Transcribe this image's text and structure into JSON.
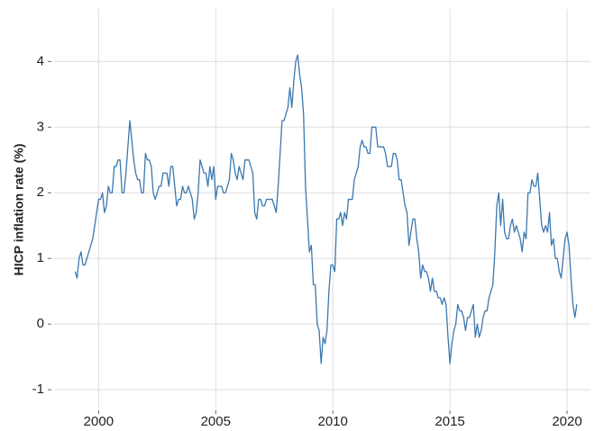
{
  "chart_data": {
    "type": "line",
    "y_label": "HICP inflation rate (%)",
    "x": [
      1999.0,
      1999.083,
      1999.167,
      1999.25,
      1999.333,
      1999.417,
      1999.5,
      1999.583,
      1999.667,
      1999.75,
      1999.833,
      1999.917,
      2000.0,
      2000.083,
      2000.167,
      2000.25,
      2000.333,
      2000.417,
      2000.5,
      2000.583,
      2000.667,
      2000.75,
      2000.833,
      2000.917,
      2001.0,
      2001.083,
      2001.167,
      2001.25,
      2001.333,
      2001.417,
      2001.5,
      2001.583,
      2001.667,
      2001.75,
      2001.833,
      2001.917,
      2002.0,
      2002.083,
      2002.167,
      2002.25,
      2002.333,
      2002.417,
      2002.5,
      2002.583,
      2002.667,
      2002.75,
      2002.833,
      2002.917,
      2003.0,
      2003.083,
      2003.167,
      2003.25,
      2003.333,
      2003.417,
      2003.5,
      2003.583,
      2003.667,
      2003.75,
      2003.833,
      2003.917,
      2004.0,
      2004.083,
      2004.167,
      2004.25,
      2004.333,
      2004.417,
      2004.5,
      2004.583,
      2004.667,
      2004.75,
      2004.833,
      2004.917,
      2005.0,
      2005.083,
      2005.167,
      2005.25,
      2005.333,
      2005.417,
      2005.5,
      2005.583,
      2005.667,
      2005.75,
      2005.833,
      2005.917,
      2006.0,
      2006.083,
      2006.167,
      2006.25,
      2006.333,
      2006.417,
      2006.5,
      2006.583,
      2006.667,
      2006.75,
      2006.833,
      2006.917,
      2007.0,
      2007.083,
      2007.167,
      2007.25,
      2007.333,
      2007.417,
      2007.5,
      2007.583,
      2007.667,
      2007.75,
      2007.833,
      2007.917,
      2008.0,
      2008.083,
      2008.167,
      2008.25,
      2008.333,
      2008.417,
      2008.5,
      2008.583,
      2008.667,
      2008.75,
      2008.833,
      2008.917,
      2009.0,
      2009.083,
      2009.167,
      2009.25,
      2009.333,
      2009.417,
      2009.5,
      2009.583,
      2009.667,
      2009.75,
      2009.833,
      2009.917,
      2010.0,
      2010.083,
      2010.167,
      2010.25,
      2010.333,
      2010.417,
      2010.5,
      2010.583,
      2010.667,
      2010.75,
      2010.833,
      2010.917,
      2011.0,
      2011.083,
      2011.167,
      2011.25,
      2011.333,
      2011.417,
      2011.5,
      2011.583,
      2011.667,
      2011.75,
      2011.833,
      2011.917,
      2012.0,
      2012.083,
      2012.167,
      2012.25,
      2012.333,
      2012.417,
      2012.5,
      2012.583,
      2012.667,
      2012.75,
      2012.833,
      2012.917,
      2013.0,
      2013.083,
      2013.167,
      2013.25,
      2013.333,
      2013.417,
      2013.5,
      2013.583,
      2013.667,
      2013.75,
      2013.833,
      2013.917,
      2014.0,
      2014.083,
      2014.167,
      2014.25,
      2014.333,
      2014.417,
      2014.5,
      2014.583,
      2014.667,
      2014.75,
      2014.833,
      2014.917,
      2015.0,
      2015.083,
      2015.167,
      2015.25,
      2015.333,
      2015.417,
      2015.5,
      2015.583,
      2015.667,
      2015.75,
      2015.833,
      2015.917,
      2016.0,
      2016.083,
      2016.167,
      2016.25,
      2016.333,
      2016.417,
      2016.5,
      2016.583,
      2016.667,
      2016.75,
      2016.833,
      2016.917,
      2017.0,
      2017.083,
      2017.167,
      2017.25,
      2017.333,
      2017.417,
      2017.5,
      2017.583,
      2017.667,
      2017.75,
      2017.833,
      2017.917,
      2018.0,
      2018.083,
      2018.167,
      2018.25,
      2018.333,
      2018.417,
      2018.5,
      2018.583,
      2018.667,
      2018.75,
      2018.833,
      2018.917,
      2019.0,
      2019.083,
      2019.167,
      2019.25,
      2019.333,
      2019.417,
      2019.5,
      2019.583,
      2019.667,
      2019.75,
      2019.833,
      2019.917,
      2020.0,
      2020.083,
      2020.167,
      2020.25,
      2020.333,
      2020.417
    ],
    "series": [
      {
        "color": "#3b78b0",
        "values": [
          0.8,
          0.7,
          1.0,
          1.1,
          0.9,
          0.9,
          1.0,
          1.1,
          1.2,
          1.3,
          1.5,
          1.7,
          1.9,
          1.9,
          2.0,
          1.7,
          1.8,
          2.1,
          2.0,
          2.0,
          2.4,
          2.4,
          2.5,
          2.5,
          2.0,
          2.0,
          2.3,
          2.7,
          3.1,
          2.8,
          2.5,
          2.3,
          2.2,
          2.2,
          2.0,
          2.0,
          2.6,
          2.5,
          2.5,
          2.4,
          2.0,
          1.9,
          2.0,
          2.1,
          2.1,
          2.3,
          2.3,
          2.3,
          2.1,
          2.4,
          2.4,
          2.1,
          1.8,
          1.9,
          1.9,
          2.1,
          2.0,
          2.0,
          2.1,
          2.0,
          1.9,
          1.6,
          1.7,
          2.0,
          2.5,
          2.4,
          2.3,
          2.3,
          2.1,
          2.4,
          2.2,
          2.4,
          1.9,
          2.1,
          2.1,
          2.1,
          2.0,
          2.0,
          2.1,
          2.2,
          2.6,
          2.5,
          2.3,
          2.2,
          2.4,
          2.3,
          2.2,
          2.5,
          2.5,
          2.5,
          2.4,
          2.3,
          1.7,
          1.6,
          1.9,
          1.9,
          1.8,
          1.8,
          1.9,
          1.9,
          1.9,
          1.9,
          1.8,
          1.7,
          2.1,
          2.6,
          3.1,
          3.1,
          3.2,
          3.3,
          3.6,
          3.3,
          3.7,
          4.0,
          4.1,
          3.8,
          3.6,
          3.2,
          2.1,
          1.6,
          1.1,
          1.2,
          0.6,
          0.6,
          0.0,
          -0.1,
          -0.6,
          -0.2,
          -0.3,
          -0.1,
          0.5,
          0.9,
          0.9,
          0.8,
          1.6,
          1.6,
          1.7,
          1.5,
          1.7,
          1.6,
          1.9,
          1.9,
          1.9,
          2.2,
          2.3,
          2.4,
          2.7,
          2.8,
          2.7,
          2.7,
          2.6,
          2.6,
          3.0,
          3.0,
          3.0,
          2.7,
          2.7,
          2.7,
          2.7,
          2.6,
          2.4,
          2.4,
          2.4,
          2.6,
          2.6,
          2.5,
          2.2,
          2.2,
          2.0,
          1.8,
          1.7,
          1.2,
          1.4,
          1.6,
          1.6,
          1.3,
          1.1,
          0.7,
          0.9,
          0.8,
          0.8,
          0.7,
          0.5,
          0.7,
          0.5,
          0.5,
          0.4,
          0.4,
          0.3,
          0.4,
          0.3,
          -0.2,
          -0.6,
          -0.3,
          -0.1,
          0.0,
          0.3,
          0.2,
          0.2,
          0.1,
          -0.1,
          0.1,
          0.1,
          0.2,
          0.3,
          -0.2,
          0.0,
          -0.2,
          -0.1,
          0.1,
          0.2,
          0.2,
          0.4,
          0.5,
          0.6,
          1.1,
          1.8,
          2.0,
          1.5,
          1.9,
          1.4,
          1.3,
          1.3,
          1.5,
          1.6,
          1.4,
          1.5,
          1.4,
          1.3,
          1.1,
          1.4,
          1.3,
          2.0,
          2.0,
          2.2,
          2.1,
          2.1,
          2.3,
          1.9,
          1.5,
          1.4,
          1.5,
          1.4,
          1.7,
          1.2,
          1.3,
          1.0,
          1.0,
          0.8,
          0.7,
          1.0,
          1.3,
          1.4,
          1.2,
          0.7,
          0.3,
          0.1,
          0.3
        ]
      }
    ],
    "xlim": [
      1998.1,
      2021
    ],
    "xticks": [
      2000,
      2005,
      2010,
      2015,
      2020
    ],
    "ylim": [
      -1.3,
      4.8
    ],
    "yticks": [
      -1,
      0,
      1,
      2,
      3,
      4
    ],
    "grid": true
  }
}
